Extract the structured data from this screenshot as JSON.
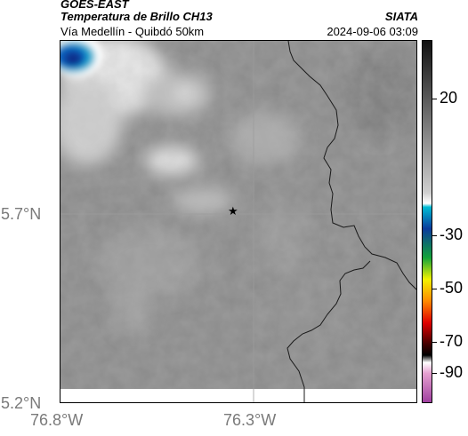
{
  "header": {
    "title_line1": "GOES-EAST",
    "title_line2": "Temperatura de Brillo CH13",
    "subtitle": "Vía Medellín - Quibdó 50km",
    "credit": "SIATA",
    "timestamp": "2024-09-06 03:09"
  },
  "axes": {
    "lat_labels": [
      "5.7°N",
      "5.2°N"
    ],
    "lon_labels": [
      "76.8°W",
      "76.3°W"
    ]
  },
  "marker": {
    "symbol": "★"
  },
  "colorbar": {
    "labels": [
      "20",
      "-30",
      "-50",
      "-70",
      "-90"
    ],
    "colors": {
      "warm_gray_top": "#111111",
      "gray_mid": "#9a9a9a",
      "white": "#ffffff",
      "cyan": "#00bcd4",
      "blue": "#0a3b9c",
      "green": "#12a33a",
      "yellow": "#f2f200",
      "orange": "#ff8a00",
      "red": "#e00000",
      "dark_red": "#400000",
      "black": "#000000",
      "pink": "#e6a0d0",
      "purple": "#a040a0"
    }
  }
}
